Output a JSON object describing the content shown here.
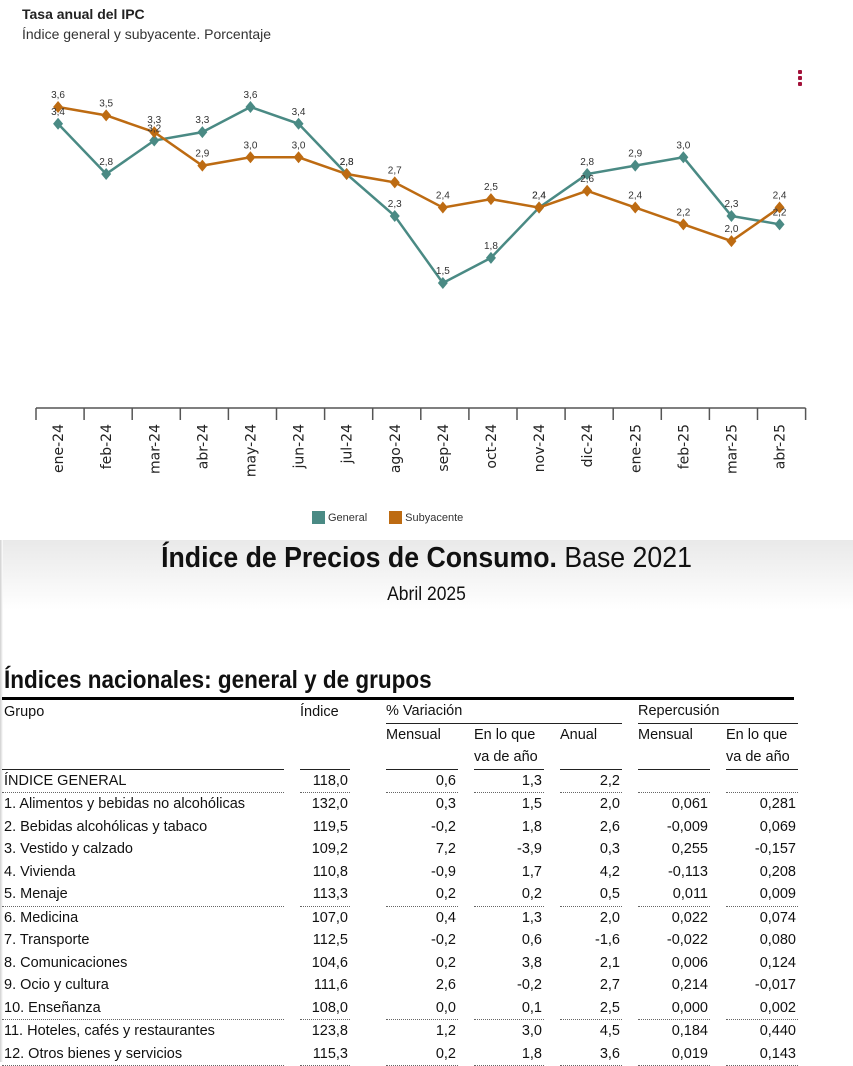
{
  "chart": {
    "title": "Tasa anual del IPC",
    "subtitle": "Índice general y subyacente. Porcentaje",
    "menu_icon": "vertical-ellipsis-icon",
    "legend": [
      {
        "label": "General",
        "color": "#4a8a84"
      },
      {
        "label": "Subyacente",
        "color": "#bd6b12"
      }
    ]
  },
  "chart_data": {
    "type": "line",
    "title": "Tasa anual del IPC",
    "subtitle": "Índice general y subyacente. Porcentaje",
    "xlabel": "",
    "ylabel": "",
    "categories": [
      "ene-24",
      "feb-24",
      "mar-24",
      "abr-24",
      "may-24",
      "jun-24",
      "jul-24",
      "ago-24",
      "sep-24",
      "oct-24",
      "nov-24",
      "dic-24",
      "ene-25",
      "feb-25",
      "mar-25",
      "abr-25"
    ],
    "series": [
      {
        "name": "General",
        "color": "#4a8a84",
        "values": [
          3.4,
          2.8,
          3.2,
          3.3,
          3.6,
          3.4,
          2.8,
          2.3,
          1.5,
          1.8,
          2.4,
          2.8,
          2.9,
          3.0,
          2.3,
          2.2
        ]
      },
      {
        "name": "Subyacente",
        "color": "#bd6b12",
        "values": [
          3.6,
          3.5,
          3.3,
          2.9,
          3.0,
          3.0,
          2.8,
          2.7,
          2.4,
          2.5,
          2.4,
          2.6,
          2.4,
          2.2,
          2.0,
          2.4
        ]
      }
    ],
    "data_labels": true,
    "grid": false,
    "legend_position": "bottom"
  },
  "document": {
    "title_bold": "Índice de Precios de Consumo.",
    "title_rest": " Base 2021",
    "subtitle": "Abril 2025",
    "section_title": "Índices nacionales: general y de grupos",
    "headers": {
      "grupo": "Grupo",
      "indice": "Índice",
      "variacion": "% Variación",
      "repercusion": "Repercusión",
      "mensual": "Mensual",
      "en_lo_que_1": "En lo que",
      "en_lo_que_2": "va de año",
      "anual": "Anual",
      "rep_mensual": "Mensual",
      "rep_en_lo_que_1": "En lo que",
      "rep_en_lo_que_2": "va de año"
    },
    "rows": [
      {
        "grupo": "ÍNDICE GENERAL",
        "indice": "118,0",
        "mensual": "0,6",
        "ano": "1,3",
        "anual": "2,2",
        "rep_mensual": "",
        "rep_ano": ""
      },
      {
        "grupo": "1. Alimentos y bebidas no alcohólicas",
        "indice": "132,0",
        "mensual": "0,3",
        "ano": "1,5",
        "anual": "2,0",
        "rep_mensual": "0,061",
        "rep_ano": "0,281"
      },
      {
        "grupo": "2. Bebidas alcohólicas y tabaco",
        "indice": "119,5",
        "mensual": "-0,2",
        "ano": "1,8",
        "anual": "2,6",
        "rep_mensual": "-0,009",
        "rep_ano": "0,069"
      },
      {
        "grupo": "3. Vestido y calzado",
        "indice": "109,2",
        "mensual": "7,2",
        "ano": "-3,9",
        "anual": "0,3",
        "rep_mensual": "0,255",
        "rep_ano": "-0,157"
      },
      {
        "grupo": "4. Vivienda",
        "indice": "110,8",
        "mensual": "-0,9",
        "ano": "1,7",
        "anual": "4,2",
        "rep_mensual": "-0,113",
        "rep_ano": "0,208"
      },
      {
        "grupo": "5. Menaje",
        "indice": "113,3",
        "mensual": "0,2",
        "ano": "0,2",
        "anual": "0,5",
        "rep_mensual": "0,011",
        "rep_ano": "0,009"
      },
      {
        "grupo": "6. Medicina",
        "indice": "107,0",
        "mensual": "0,4",
        "ano": "1,3",
        "anual": "2,0",
        "rep_mensual": "0,022",
        "rep_ano": "0,074"
      },
      {
        "grupo": "7. Transporte",
        "indice": "112,5",
        "mensual": "-0,2",
        "ano": "0,6",
        "anual": "-1,6",
        "rep_mensual": "-0,022",
        "rep_ano": "0,080"
      },
      {
        "grupo": "8. Comunicaciones",
        "indice": "104,6",
        "mensual": "0,2",
        "ano": "3,8",
        "anual": "2,1",
        "rep_mensual": "0,006",
        "rep_ano": "0,124"
      },
      {
        "grupo": "9. Ocio y cultura",
        "indice": "111,6",
        "mensual": "2,6",
        "ano": "-0,2",
        "anual": "2,7",
        "rep_mensual": "0,214",
        "rep_ano": "-0,017"
      },
      {
        "grupo": "10. Enseñanza",
        "indice": "108,0",
        "mensual": "0,0",
        "ano": "0,1",
        "anual": "2,5",
        "rep_mensual": "0,000",
        "rep_ano": "0,002"
      },
      {
        "grupo": "11. Hoteles, cafés y restaurantes",
        "indice": "123,8",
        "mensual": "1,2",
        "ano": "3,0",
        "anual": "4,5",
        "rep_mensual": "0,184",
        "rep_ano": "0,440"
      },
      {
        "grupo": "12. Otros bienes y servicios",
        "indice": "115,3",
        "mensual": "0,2",
        "ano": "1,8",
        "anual": "3,6",
        "rep_mensual": "0,019",
        "rep_ano": "0,143"
      }
    ]
  }
}
